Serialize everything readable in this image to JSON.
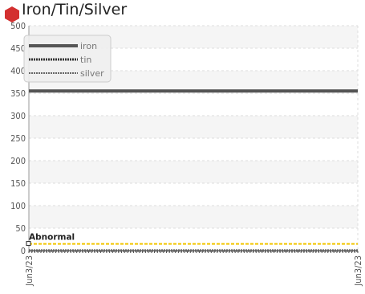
{
  "chart_data": {
    "type": "line",
    "title": "Iron/Tin/Silver",
    "x": [
      "Jun3/23",
      "Jun3/23"
    ],
    "x_tick_labels": [
      "Jun3/23",
      "Jun3/23"
    ],
    "ylim": [
      0,
      500
    ],
    "y_ticks": [
      0,
      50,
      100,
      150,
      200,
      250,
      300,
      350,
      400,
      450,
      500
    ],
    "y_tick_labels": [
      "0",
      "50",
      "100",
      "150",
      "200",
      "250",
      "300",
      "350",
      "400",
      "450",
      "500"
    ],
    "grid": true,
    "legend_position": "top-left",
    "series": [
      {
        "name": "iron",
        "values": [
          355,
          355
        ],
        "color": "#555555",
        "style": "solid"
      },
      {
        "name": "tin",
        "values": [
          0,
          0
        ],
        "color": "#333333",
        "style": "dotted"
      },
      {
        "name": "silver",
        "values": [
          0,
          0
        ],
        "color": "#666666",
        "style": "dashed"
      }
    ],
    "threshold": {
      "label": "Abnormal",
      "value": 15,
      "color": "#f2c500"
    }
  }
}
